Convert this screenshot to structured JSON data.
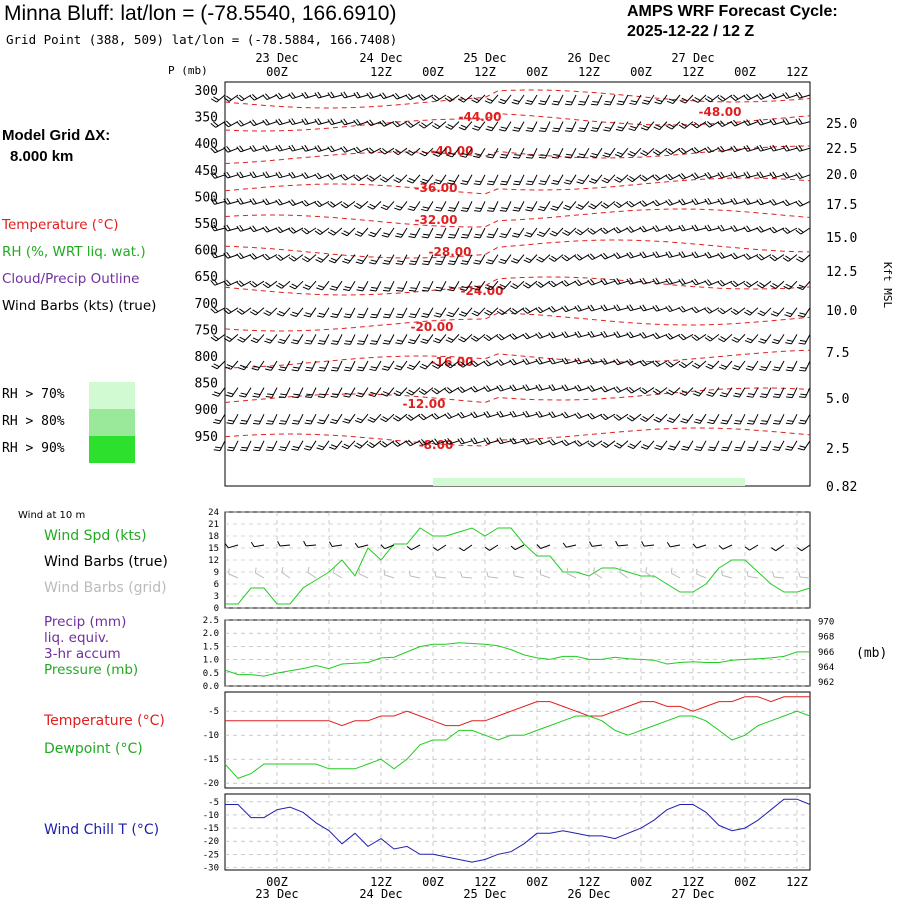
{
  "header": {
    "station": "Minna Bluff:  lat/lon = (-78.5540, 166.6910)",
    "grid_point": "Grid Point (388, 509) lat/lon = (-78.5884, 166.7408)",
    "cycle_title": "AMPS WRF Forecast Cycle:",
    "cycle_value": "2025-12-22 / 12  Z"
  },
  "sidebar": {
    "model_grid_label": "Model Grid ΔX:",
    "model_grid_value": "8.000 km",
    "legend": [
      {
        "text": "Temperature (°C)",
        "color": "#e02020"
      },
      {
        "text": "RH (%, WRT liq. wat.)",
        "color": "#22aa22"
      },
      {
        "text": "Cloud/Precip Outline",
        "color": "#7030a0"
      },
      {
        "text": "Wind Barbs (kts) (true)",
        "color": "#000000"
      }
    ],
    "rh_boxes": [
      {
        "text": "RH > 70%",
        "color": "#d2fad2"
      },
      {
        "text": "RH > 80%",
        "color": "#9ae89a"
      },
      {
        "text": "RH > 90%",
        "color": "#2ee02e"
      }
    ]
  },
  "colors": {
    "temperature": "#e02020",
    "dewpoint": "#22cc22",
    "wind_chill": "#2020b0",
    "rh": "#22cc22",
    "barb": "#000000",
    "grid_barb": "#bbbbbb"
  },
  "time_axis": {
    "top_tick_labels": [
      "00Z",
      "12Z",
      "00Z",
      "12Z",
      "00Z",
      "12Z",
      "00Z",
      "12Z",
      "00Z",
      "12Z"
    ],
    "date_labels": [
      "23 Dec",
      "24 Dec",
      "25 Dec",
      "26 Dec",
      "27 Dec"
    ]
  },
  "panels": {
    "upper": {
      "p_label": "P (mb)",
      "pressure_ticks": [
        "300",
        "350",
        "400",
        "450",
        "500",
        "550",
        "600",
        "650",
        "700",
        "750",
        "800",
        "850",
        "900",
        "950"
      ],
      "height_ticks": [
        "25.0",
        "22.5",
        "20.0",
        "17.5",
        "15.0",
        "12.5",
        "10.0",
        "7.5",
        "5.0",
        "2.5",
        "0.82"
      ],
      "height_axis_label": "Kft MSL",
      "isotherm_labels": [
        "-44.00",
        "-48.00",
        "-40.00",
        "-36.00",
        "-32.00",
        "-28.00",
        "-24.00",
        "-20.00",
        "-16.00",
        "-12.00",
        "-8.00"
      ]
    },
    "wind": {
      "header": "Wind at 10 m",
      "labels": [
        {
          "text": "Wind Spd (kts)",
          "color": "#22aa22"
        },
        {
          "text": "Wind Barbs (true)",
          "color": "#000000"
        },
        {
          "text": "Wind Barbs (grid)",
          "color": "#bbbbbb"
        }
      ],
      "yticks": [
        "24",
        "21",
        "18",
        "15",
        "12",
        "9",
        "6",
        "3",
        "0"
      ]
    },
    "precip": {
      "labels": [
        {
          "text": "Precip (mm)",
          "color": "#7030a0"
        },
        {
          "text": "liq. equiv.",
          "color": "#7030a0"
        },
        {
          "text": "3-hr accum",
          "color": "#7030a0"
        },
        {
          "text": "Pressure (mb)",
          "color": "#22aa22"
        }
      ],
      "yticks_left": [
        "2.5",
        "2.0",
        "1.5",
        "1.0",
        "0.5",
        "0.0"
      ],
      "yticks_right": [
        "970",
        "968",
        "966",
        "964",
        "962"
      ],
      "right_unit": "(mb)"
    },
    "temp": {
      "labels": [
        {
          "text": "Temperature (°C)",
          "color": "#e02020"
        },
        {
          "text": "Dewpoint (°C)",
          "color": "#22aa22"
        }
      ],
      "yticks": [
        "-5",
        "-10",
        "-15",
        "-20"
      ]
    },
    "chill": {
      "labels": [
        {
          "text": "Wind Chill T (°C)",
          "color": "#2020b0"
        }
      ],
      "yticks": [
        "-5",
        "-10",
        "-15",
        "-20",
        "-25",
        "-30"
      ]
    }
  },
  "chart_data": [
    {
      "type": "line",
      "title": "Wind at 10 m",
      "x_start": "2025-12-22 12Z",
      "x_step_hours": 3,
      "ylim": [
        0,
        24
      ],
      "series": [
        {
          "name": "Wind Spd (kts)",
          "values": [
            1,
            1,
            5,
            5,
            1,
            1,
            5,
            7,
            9,
            12,
            8,
            15,
            12,
            16,
            16,
            20,
            18,
            18,
            19,
            20,
            18,
            20,
            20,
            16,
            13,
            13,
            9,
            9,
            8,
            10,
            10,
            9,
            8,
            8,
            6,
            4,
            4,
            6,
            10,
            12,
            12,
            9,
            6,
            4,
            4,
            5
          ]
        }
      ]
    },
    {
      "type": "line",
      "title": "Pressure (mb)",
      "x_start": "2025-12-22 12Z",
      "x_step_hours": 3,
      "ylim": [
        961.5,
        970.2
      ],
      "series": [
        {
          "name": "Pressure (mb)",
          "values": [
            963.6,
            963.0,
            963.0,
            962.8,
            963.2,
            963.5,
            963.8,
            964.2,
            963.8,
            964.4,
            964.5,
            964.6,
            965.2,
            965.3,
            966.0,
            966.7,
            967.0,
            967.0,
            967.2,
            967.1,
            967.0,
            966.8,
            966.3,
            965.6,
            965.2,
            965.0,
            965.4,
            965.4,
            965.0,
            965.0,
            965.3,
            965.1,
            965.0,
            964.9,
            964.4,
            964.6,
            964.7,
            964.6,
            964.6,
            964.9,
            965.0,
            965.1,
            965.2,
            965.4,
            966.0,
            966.0
          ]
        }
      ]
    },
    {
      "type": "line",
      "title": "Temperature / Dewpoint",
      "x_start": "2025-12-22 12Z",
      "x_step_hours": 3,
      "ylim": [
        -21,
        -1
      ],
      "series": [
        {
          "name": "Temperature (°C)",
          "values": [
            -7,
            -7,
            -7,
            -7,
            -7,
            -7,
            -7,
            -7,
            -7,
            -8,
            -7,
            -7,
            -6,
            -6,
            -5,
            -6,
            -7,
            -8,
            -8,
            -7,
            -7,
            -6,
            -5,
            -4,
            -3,
            -3,
            -4,
            -5,
            -6,
            -6,
            -5,
            -4,
            -3,
            -3,
            -4,
            -4,
            -5,
            -4,
            -3,
            -3,
            -2,
            -2,
            -3,
            -2,
            -2,
            -2
          ]
        },
        {
          "name": "Dewpoint (°C)",
          "values": [
            -16,
            -19,
            -18,
            -16,
            -16,
            -16,
            -16,
            -16,
            -17,
            -17,
            -17,
            -16,
            -15,
            -17,
            -15,
            -12,
            -11,
            -11,
            -9,
            -9,
            -10,
            -11,
            -10,
            -10,
            -9,
            -8,
            -7,
            -6,
            -6,
            -7,
            -9,
            -10,
            -9,
            -8,
            -7,
            -6,
            -6,
            -7,
            -9,
            -11,
            -10,
            -8,
            -7,
            -6,
            -5,
            -6
          ]
        }
      ]
    },
    {
      "type": "line",
      "title": "Wind Chill T",
      "x_start": "2025-12-22 12Z",
      "x_step_hours": 3,
      "ylim": [
        -31,
        -2
      ],
      "series": [
        {
          "name": "Wind Chill T (°C)",
          "values": [
            -6,
            -6,
            -11,
            -11,
            -8,
            -7,
            -9,
            -13,
            -16,
            -21,
            -17,
            -22,
            -19,
            -23,
            -22,
            -25,
            -25,
            -26,
            -27,
            -28,
            -27,
            -25,
            -24,
            -21,
            -17,
            -17,
            -16,
            -17,
            -18,
            -18,
            -19,
            -17,
            -15,
            -12,
            -8,
            -6,
            -6,
            -9,
            -14,
            -16,
            -15,
            -12,
            -8,
            -4,
            -4,
            -6
          ]
        }
      ]
    }
  ]
}
